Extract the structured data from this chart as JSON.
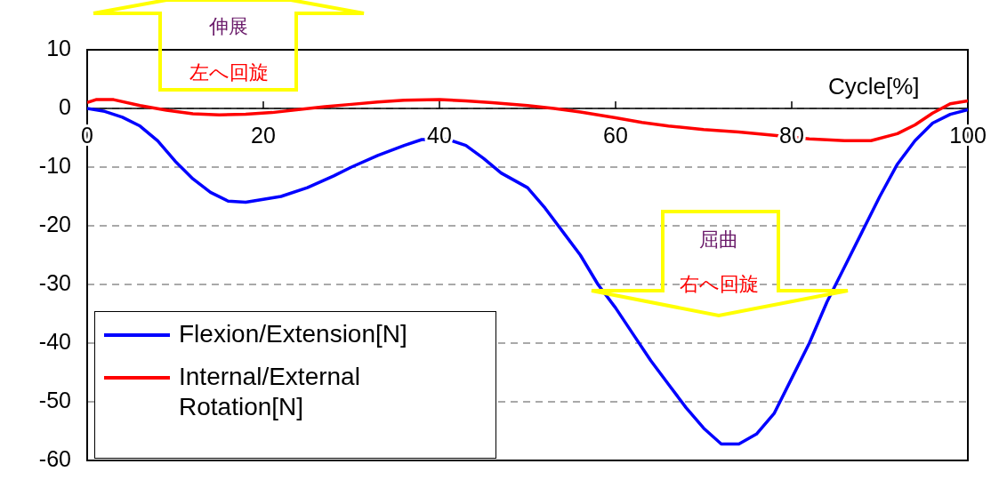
{
  "chart_data": {
    "type": "line",
    "xlabel": "Cycle[%]",
    "xlim": [
      0,
      100
    ],
    "xticks": [
      0,
      20,
      40,
      60,
      80,
      100
    ],
    "ylim": [
      -60,
      10
    ],
    "yticks": [
      10,
      0,
      -10,
      -20,
      -30,
      -40,
      -50,
      -60
    ],
    "grid": "y",
    "legend": "bottom left",
    "marker": "none",
    "line_style": "solid",
    "annotations": [
      "伸展",
      "左へ回旋",
      "屈曲",
      "右へ回旋"
    ],
    "series": [
      {
        "name": "Flexion/Extension[N]",
        "color": "#0000ff",
        "x": [
          0,
          2,
          4,
          6,
          8,
          10,
          12,
          14,
          16,
          18,
          20,
          22,
          25,
          28,
          30,
          33,
          36,
          38,
          41,
          43,
          45,
          47,
          50,
          52,
          54,
          56,
          58,
          60,
          62,
          64,
          66,
          68,
          70,
          72,
          74,
          76,
          78,
          80,
          82,
          84,
          86,
          88,
          90,
          92,
          94,
          96,
          98,
          100
        ],
        "values": [
          0,
          -0.5,
          -1.5,
          -3,
          -5.5,
          -9,
          -12,
          -14.3,
          -15.8,
          -16,
          -15.5,
          -15,
          -13.5,
          -11.5,
          -10,
          -8,
          -6.3,
          -5.3,
          -5.3,
          -6.3,
          -8.5,
          -11,
          -13.5,
          -17,
          -21,
          -25,
          -30,
          -34,
          -38.5,
          -43,
          -47,
          -51,
          -54.5,
          -57.2,
          -57.2,
          -55.5,
          -52,
          -46,
          -40,
          -33,
          -27,
          -21,
          -15,
          -9.5,
          -5.5,
          -2.5,
          -1,
          -0.2
        ]
      },
      {
        "name": "Internal/External Rotation[N]",
        "color": "#ff0000",
        "x": [
          0,
          1,
          3,
          6,
          9,
          12,
          15,
          18,
          21,
          24,
          27,
          30,
          33,
          36,
          40,
          43,
          46,
          50,
          53,
          56,
          60,
          63,
          66,
          70,
          74,
          78,
          82,
          86,
          89,
          92,
          94,
          96,
          98,
          100
        ],
        "values": [
          1,
          1.5,
          1.5,
          0.5,
          -0.3,
          -0.9,
          -1.1,
          -1,
          -0.7,
          -0.2,
          0.3,
          0.7,
          1.1,
          1.4,
          1.5,
          1.3,
          1,
          0.5,
          0,
          -0.6,
          -1.6,
          -2.4,
          -3,
          -3.6,
          -4,
          -4.6,
          -5.2,
          -5.5,
          -5.5,
          -4.3,
          -2.8,
          -0.8,
          0.8,
          1.3
        ]
      }
    ]
  }
}
